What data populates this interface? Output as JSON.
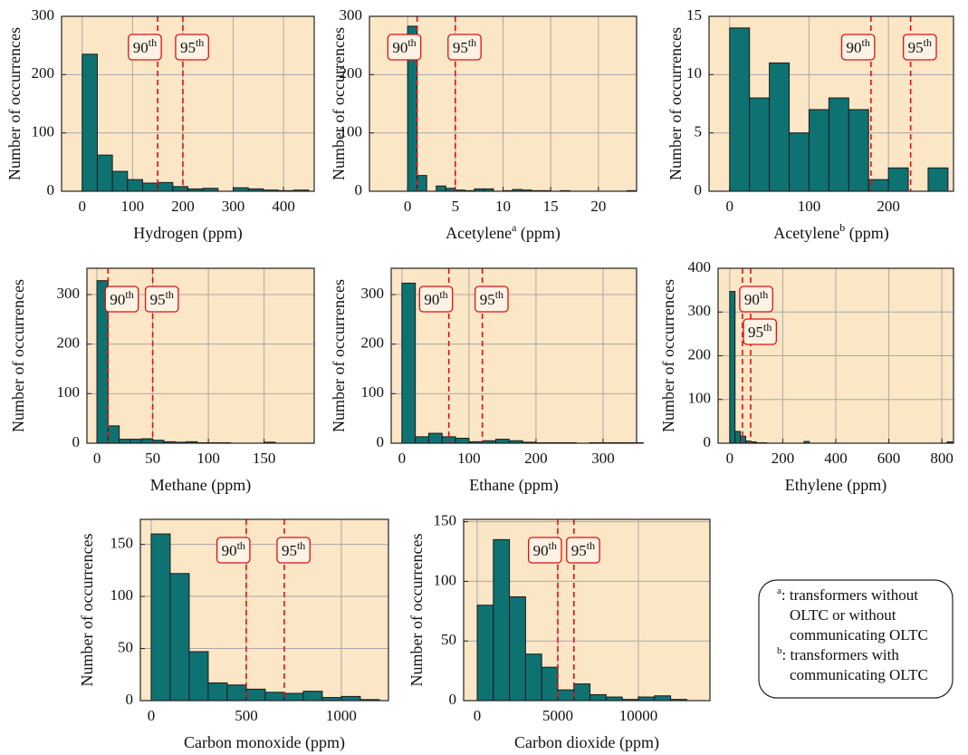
{
  "chart_data": [
    {
      "type": "histogram",
      "color": "#0e7272",
      "grid": true,
      "ylabel": "Number of occurrences",
      "xlabel": "Hydrogen (ppm)",
      "bins": [
        0,
        30,
        60,
        90,
        120,
        150,
        180,
        210,
        240,
        270,
        300,
        330,
        360,
        390,
        420,
        450
      ],
      "counts": [
        235,
        62,
        34,
        20,
        14,
        15,
        8,
        4,
        5,
        0,
        6,
        4,
        2,
        1,
        2
      ],
      "xlim": [
        -41,
        461
      ],
      "xticks": [
        0,
        100,
        200,
        300,
        400
      ],
      "ylim": [
        0,
        300
      ],
      "yticks": [
        0,
        100,
        200,
        300
      ],
      "percentiles": [
        {
          "value": 150,
          "label": "90",
          "suffix": "th"
        },
        {
          "value": 200,
          "label": "95",
          "suffix": "th"
        }
      ]
    },
    {
      "type": "histogram",
      "color": "#0e7272",
      "grid": true,
      "ylabel": "Number of occurrences",
      "xlabel": {
        "text": "Acetylene",
        "sup": "a",
        "after": " (ppm)"
      },
      "bins": [
        0,
        1,
        2,
        3,
        4,
        5,
        6,
        7,
        8,
        9,
        10,
        11,
        12,
        13,
        14,
        15,
        16,
        17,
        18,
        19,
        20,
        21,
        22,
        23,
        24
      ],
      "counts": [
        283,
        27,
        0,
        9,
        5,
        2,
        1,
        4,
        4,
        0,
        1,
        3,
        2,
        1,
        1,
        0,
        1,
        0,
        0,
        0,
        0,
        0,
        0,
        1
      ],
      "xlim": [
        -4,
        24
      ],
      "xticks": [
        0,
        5,
        10,
        15,
        20
      ],
      "ylim": [
        0,
        300
      ],
      "yticks": [
        0,
        100,
        200,
        300
      ],
      "percentiles": [
        {
          "value": 1,
          "label": "90",
          "suffix": "th"
        },
        {
          "value": 5,
          "label": "95",
          "suffix": "th"
        }
      ]
    },
    {
      "type": "histogram",
      "color": "#0e7272",
      "grid": true,
      "ylabel": "Number of occurrences",
      "xlabel": {
        "text": "Acetylene",
        "sup": "b",
        "after": " (ppm)"
      },
      "bins": [
        0,
        25,
        50,
        75,
        100,
        125,
        150,
        175,
        200,
        225,
        250,
        275
      ],
      "counts": [
        14,
        8,
        11,
        5,
        7,
        8,
        7,
        1,
        2,
        0,
        2
      ],
      "xlim": [
        -26,
        282
      ],
      "xticks": [
        0,
        100,
        200
      ],
      "ylim": [
        0,
        15
      ],
      "yticks": [
        0,
        5,
        10,
        15
      ],
      "percentiles": [
        {
          "value": 178,
          "label": "90",
          "suffix": "th"
        },
        {
          "value": 228,
          "label": "95",
          "suffix": "th"
        }
      ]
    },
    {
      "type": "histogram",
      "color": "#0e7272",
      "grid": true,
      "ylabel": "Number of occurrences",
      "xlabel": "Methane (ppm)",
      "bins": [
        0,
        10,
        20,
        30,
        40,
        50,
        60,
        70,
        80,
        90,
        100,
        110,
        120,
        130,
        140,
        150,
        160,
        170
      ],
      "counts": [
        328,
        35,
        8,
        8,
        9,
        6,
        3,
        2,
        3,
        1,
        1,
        1,
        0,
        0,
        0,
        2,
        0
      ],
      "xlim": [
        -9,
        195
      ],
      "xticks": [
        0,
        50,
        100,
        150
      ],
      "ylim": [
        0,
        353
      ],
      "yticks": [
        0,
        100,
        200,
        300
      ],
      "percentiles": [
        {
          "value": 10,
          "label": "90",
          "suffix": "th"
        },
        {
          "value": 50,
          "label": "95",
          "suffix": "th"
        }
      ]
    },
    {
      "type": "histogram",
      "color": "#0e7272",
      "grid": true,
      "ylabel": "Number of occurrences",
      "xlabel": "Ethane (ppm)",
      "bins": [
        0,
        20,
        40,
        60,
        80,
        100,
        120,
        140,
        160,
        180,
        200,
        220,
        240,
        260,
        280,
        300,
        320,
        340,
        360
      ],
      "counts": [
        323,
        13,
        20,
        13,
        10,
        3,
        5,
        8,
        5,
        2,
        1,
        1,
        1,
        0,
        1,
        1,
        1,
        1
      ],
      "xlim": [
        -16,
        350
      ],
      "xticks": [
        0,
        100,
        200,
        300
      ],
      "ylim": [
        0,
        353
      ],
      "yticks": [
        0,
        100,
        200,
        300
      ],
      "percentiles": [
        {
          "value": 70,
          "label": "90",
          "suffix": "th"
        },
        {
          "value": 120,
          "label": "95",
          "suffix": "th"
        }
      ]
    },
    {
      "type": "histogram",
      "color": "#0e7272",
      "grid": true,
      "ylabel": "Number of occurrences",
      "xlabel": "Ethylene (ppm)",
      "bins": [
        0,
        20,
        40,
        60,
        80,
        100,
        120,
        140,
        160,
        180,
        200,
        220,
        240,
        260,
        280,
        300,
        320,
        340,
        360,
        380,
        400,
        420,
        440,
        460,
        480,
        500,
        520,
        540,
        560,
        580,
        600,
        620,
        640,
        660,
        680,
        700,
        720,
        740,
        760,
        780,
        800,
        820,
        840
      ],
      "counts": [
        347,
        27,
        16,
        5,
        3,
        1,
        1,
        0,
        0,
        0,
        0,
        0,
        0,
        0,
        4,
        0,
        0,
        0,
        0,
        0,
        0,
        0,
        0,
        0,
        0,
        0,
        0,
        0,
        0,
        0,
        0,
        0,
        0,
        0,
        0,
        0,
        0,
        0,
        0,
        0,
        0,
        3
      ],
      "xlim": [
        -44,
        844
      ],
      "xticks": [
        0,
        200,
        400,
        600,
        800
      ],
      "ylim": [
        0,
        400
      ],
      "yticks": [
        0,
        100,
        200,
        300,
        400
      ],
      "percentiles": [
        {
          "value": 48,
          "label": "90",
          "suffix": "th"
        },
        {
          "value": 79,
          "label": "95",
          "suffix": "th"
        }
      ]
    },
    {
      "type": "histogram",
      "color": "#0e7272",
      "grid": true,
      "ylabel": "Number of occurrences",
      "xlabel": "Carbon monoxide (ppm)",
      "bins": [
        0,
        100,
        200,
        300,
        400,
        500,
        600,
        700,
        800,
        900,
        1000,
        1100,
        1200
      ],
      "counts": [
        160,
        122,
        47,
        17,
        15,
        11,
        8,
        7,
        9,
        3,
        4,
        1
      ],
      "xlim": [
        -57,
        1248
      ],
      "xticks": [
        0,
        500,
        1000
      ],
      "ylim": [
        0,
        174
      ],
      "yticks": [
        0,
        50,
        100,
        150
      ],
      "percentiles": [
        {
          "value": 500,
          "label": "90",
          "suffix": "th"
        },
        {
          "value": 700,
          "label": "95",
          "suffix": "th"
        }
      ]
    },
    {
      "type": "histogram",
      "color": "#0e7272",
      "grid": true,
      "ylabel": "Number of occurrences",
      "xlabel": "Carbon dioxide (ppm)",
      "bins": [
        0,
        1000,
        2000,
        3000,
        4000,
        5000,
        6000,
        7000,
        8000,
        9000,
        10000,
        11000,
        12000,
        13000
      ],
      "counts": [
        80,
        135,
        87,
        39,
        28,
        9,
        14,
        5,
        3,
        1,
        3,
        4,
        1
      ],
      "xlim": [
        -843,
        14440
      ],
      "xticks": [
        0,
        5000,
        10000
      ],
      "ylim": [
        0,
        152
      ],
      "yticks": [
        0,
        50,
        100,
        150
      ],
      "percentiles": [
        {
          "value": 5000,
          "label": "90",
          "suffix": "th"
        },
        {
          "value": 6000,
          "label": "95",
          "suffix": "th"
        }
      ]
    }
  ],
  "notes": [
    {
      "mark": "a",
      "lines": [
        ": transformers without",
        "OLTC or without",
        "communicating OLTC"
      ]
    },
    {
      "mark": "b",
      "lines": [
        ": transformers with",
        "communicating OLTC"
      ]
    }
  ]
}
